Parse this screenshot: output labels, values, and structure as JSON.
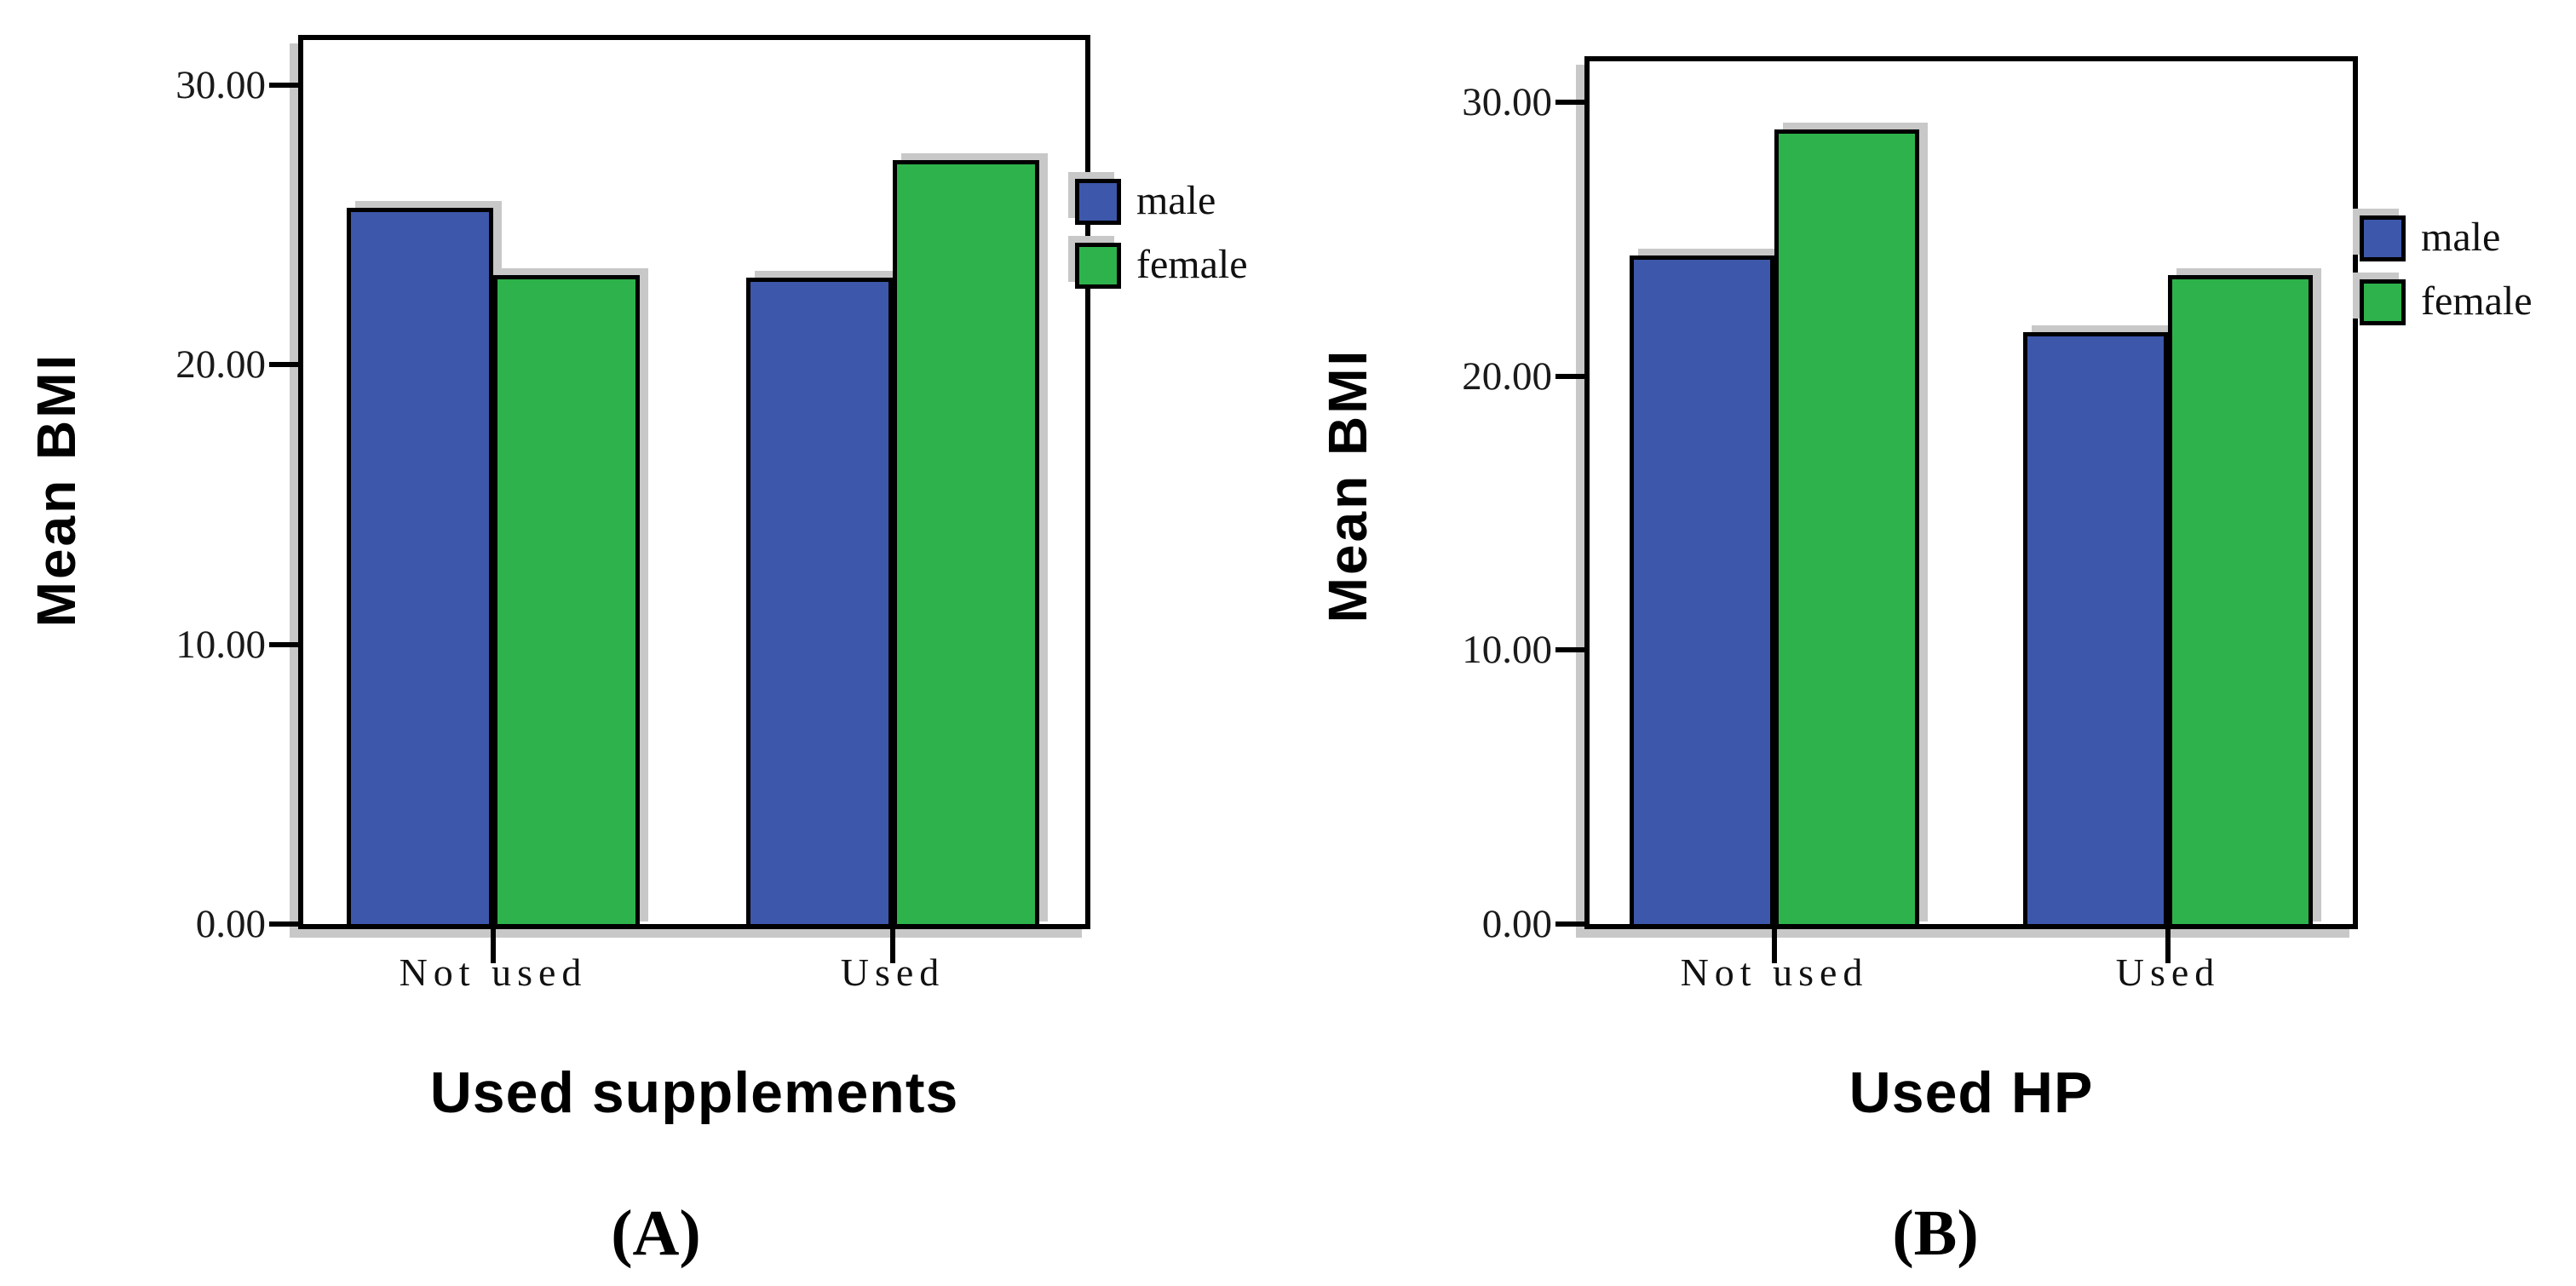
{
  "figure": {
    "background": "#ffffff",
    "colors": {
      "male": "#3D57AA",
      "female": "#2EB24B",
      "bar_border": "#000000",
      "frame_border": "#000000",
      "shadow": "#c8c8c8",
      "tick_label": "#1a1a1a",
      "text": "#000000"
    }
  },
  "chart_data": [
    {
      "id": "A",
      "type": "bar",
      "caption": "(A)",
      "xlabel": "Used supplements",
      "ylabel": "Mean BMI",
      "categories": [
        "Not used",
        "Used"
      ],
      "series": [
        {
          "name": "male",
          "values": [
            25.6,
            23.1
          ]
        },
        {
          "name": "female",
          "values": [
            23.2,
            27.3
          ]
        }
      ],
      "yticks": [
        {
          "value": 0,
          "label": "0.00"
        },
        {
          "value": 10,
          "label": "10.00"
        },
        {
          "value": 20,
          "label": "20.00"
        },
        {
          "value": 30,
          "label": "30.00"
        }
      ],
      "ylim": [
        0,
        31.6
      ],
      "grid": false,
      "legend_position": "right"
    },
    {
      "id": "B",
      "type": "bar",
      "caption": "(B)",
      "xlabel": "Used HP",
      "ylabel": "Mean BMI",
      "categories": [
        "Not used",
        "Used"
      ],
      "series": [
        {
          "name": "male",
          "values": [
            24.4,
            21.6
          ]
        },
        {
          "name": "female",
          "values": [
            29.0,
            23.7
          ]
        }
      ],
      "yticks": [
        {
          "value": 0,
          "label": "0.00"
        },
        {
          "value": 10,
          "label": "10.00"
        },
        {
          "value": 20,
          "label": "20.00"
        },
        {
          "value": 30,
          "label": "30.00"
        }
      ],
      "ylim": [
        0,
        31.5
      ],
      "grid": false,
      "legend_position": "right"
    }
  ]
}
